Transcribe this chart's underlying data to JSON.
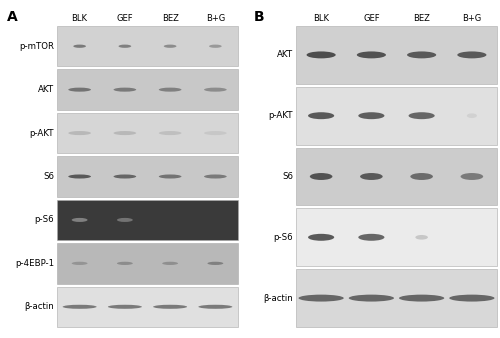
{
  "panel_A_label": "A",
  "panel_B_label": "B",
  "panel_A_columns": [
    "BLK",
    "GEF",
    "BEZ",
    "B+G"
  ],
  "panel_B_columns": [
    "BLK",
    "GEF",
    "BEZ",
    "B+G"
  ],
  "panel_A_rows": [
    "p-mTOR",
    "AKT",
    "p-AKT",
    "S6",
    "p-S6",
    "p-4EBP-1",
    "β-actin"
  ],
  "panel_B_rows": [
    "AKT",
    "p-AKT",
    "S6",
    "p-S6",
    "β-actin"
  ],
  "bg_color": "#ffffff",
  "panel_A_bg": [
    "#d2d2d2",
    "#c8c8c8",
    "#d6d6d6",
    "#c8c8c8",
    "#3a3a3a",
    "#b8b8b8",
    "#e0e0e0"
  ],
  "panel_B_bg": [
    "#d0d0d0",
    "#e0e0e0",
    "#cccccc",
    "#ebebeb",
    "#d8d8d8"
  ],
  "bands_A": [
    [
      [
        0.28,
        0.08,
        0.52
      ],
      [
        0.28,
        0.08,
        0.5
      ],
      [
        0.28,
        0.08,
        0.45
      ],
      [
        0.28,
        0.08,
        0.4
      ]
    ],
    [
      [
        0.5,
        0.1,
        0.55
      ],
      [
        0.5,
        0.1,
        0.52
      ],
      [
        0.5,
        0.1,
        0.5
      ],
      [
        0.5,
        0.1,
        0.45
      ]
    ],
    [
      [
        0.5,
        0.1,
        0.28
      ],
      [
        0.5,
        0.1,
        0.28
      ],
      [
        0.5,
        0.1,
        0.25
      ],
      [
        0.5,
        0.1,
        0.22
      ]
    ],
    [
      [
        0.5,
        0.1,
        0.65
      ],
      [
        0.5,
        0.1,
        0.6
      ],
      [
        0.5,
        0.1,
        0.55
      ],
      [
        0.5,
        0.1,
        0.52
      ]
    ],
    [
      [
        0.35,
        0.1,
        0.5
      ],
      [
        0.35,
        0.1,
        0.55
      ],
      [
        0.0,
        0.0,
        0.0
      ],
      [
        0.0,
        0.0,
        0.0
      ]
    ],
    [
      [
        0.35,
        0.08,
        0.42
      ],
      [
        0.35,
        0.08,
        0.45
      ],
      [
        0.35,
        0.08,
        0.44
      ],
      [
        0.35,
        0.08,
        0.5
      ]
    ],
    [
      [
        0.75,
        0.1,
        0.52
      ],
      [
        0.75,
        0.1,
        0.52
      ],
      [
        0.75,
        0.1,
        0.52
      ],
      [
        0.75,
        0.1,
        0.52
      ]
    ]
  ],
  "bands_B": [
    [
      [
        0.58,
        0.12,
        0.7
      ],
      [
        0.58,
        0.12,
        0.68
      ],
      [
        0.58,
        0.12,
        0.65
      ],
      [
        0.58,
        0.12,
        0.65
      ]
    ],
    [
      [
        0.52,
        0.12,
        0.65
      ],
      [
        0.52,
        0.12,
        0.63
      ],
      [
        0.52,
        0.12,
        0.6
      ],
      [
        0.2,
        0.08,
        0.18
      ]
    ],
    [
      [
        0.45,
        0.12,
        0.68
      ],
      [
        0.45,
        0.12,
        0.65
      ],
      [
        0.45,
        0.12,
        0.58
      ],
      [
        0.45,
        0.12,
        0.52
      ]
    ],
    [
      [
        0.52,
        0.12,
        0.65
      ],
      [
        0.52,
        0.12,
        0.6
      ],
      [
        0.25,
        0.08,
        0.22
      ],
      [
        0.0,
        0.0,
        0.0
      ]
    ],
    [
      [
        0.9,
        0.12,
        0.6
      ],
      [
        0.9,
        0.12,
        0.6
      ],
      [
        0.9,
        0.12,
        0.6
      ],
      [
        0.9,
        0.12,
        0.6
      ]
    ]
  ]
}
